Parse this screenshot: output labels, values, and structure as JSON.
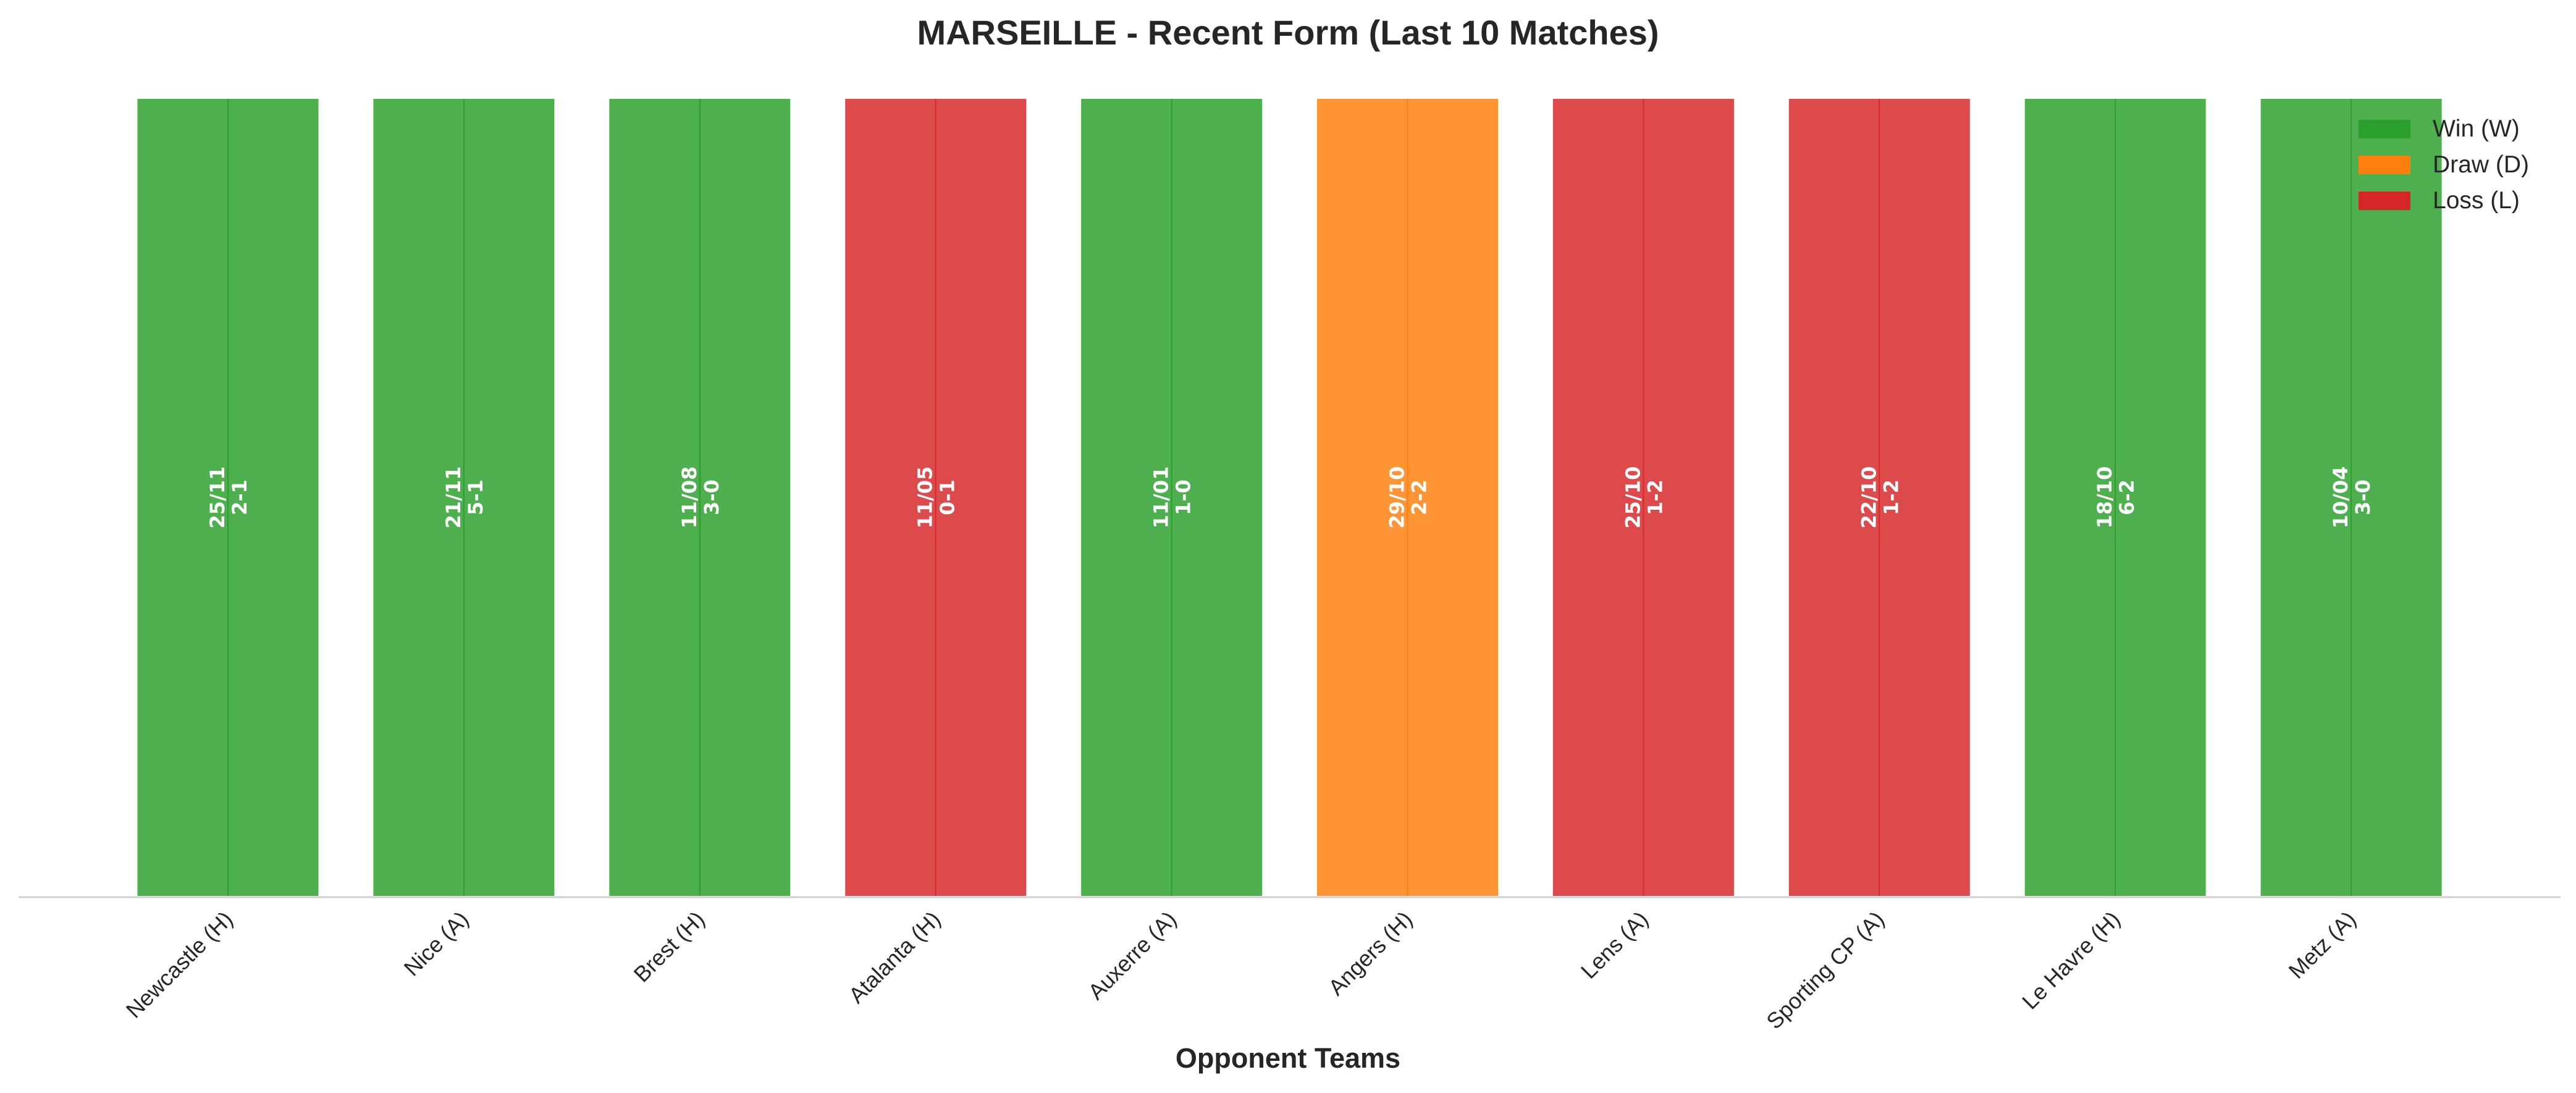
{
  "chart_data": {
    "type": "bar",
    "title": "MARSEILLE - Recent Form (Last 10 Matches)",
    "xlabel": "Opponent Teams",
    "ylabel": "",
    "categories": [
      "Newcastle (H)",
      "Nice (A)",
      "Brest (H)",
      "Atalanta (H)",
      "Auxerre (A)",
      "Angers (H)",
      "Lens (A)",
      "Sporting CP (A)",
      "Le Havre (H)",
      "Metz (A)"
    ],
    "values": [
      1,
      1,
      1,
      1,
      1,
      1,
      1,
      1,
      1,
      1
    ],
    "results": [
      "W",
      "W",
      "W",
      "L",
      "W",
      "D",
      "L",
      "L",
      "W",
      "W"
    ],
    "dates": [
      "25/11",
      "21/11",
      "11/08",
      "11/05",
      "11/01",
      "29/10",
      "25/10",
      "22/10",
      "18/10",
      "10/04"
    ],
    "scores": [
      "2-1",
      "5-1",
      "3-0",
      "0-1",
      "1-0",
      "2-2",
      "1-2",
      "1-2",
      "6-2",
      "3-0"
    ],
    "ylim": [
      0,
      1
    ],
    "grid": false,
    "legend": {
      "placement": "top-right",
      "entries": [
        {
          "key": "W",
          "label": "Win (W)",
          "color": "#2ca02c"
        },
        {
          "key": "D",
          "label": "Draw (D)",
          "color": "#ff7f0e"
        },
        {
          "key": "L",
          "label": "Loss (L)",
          "color": "#d62728"
        }
      ]
    }
  }
}
